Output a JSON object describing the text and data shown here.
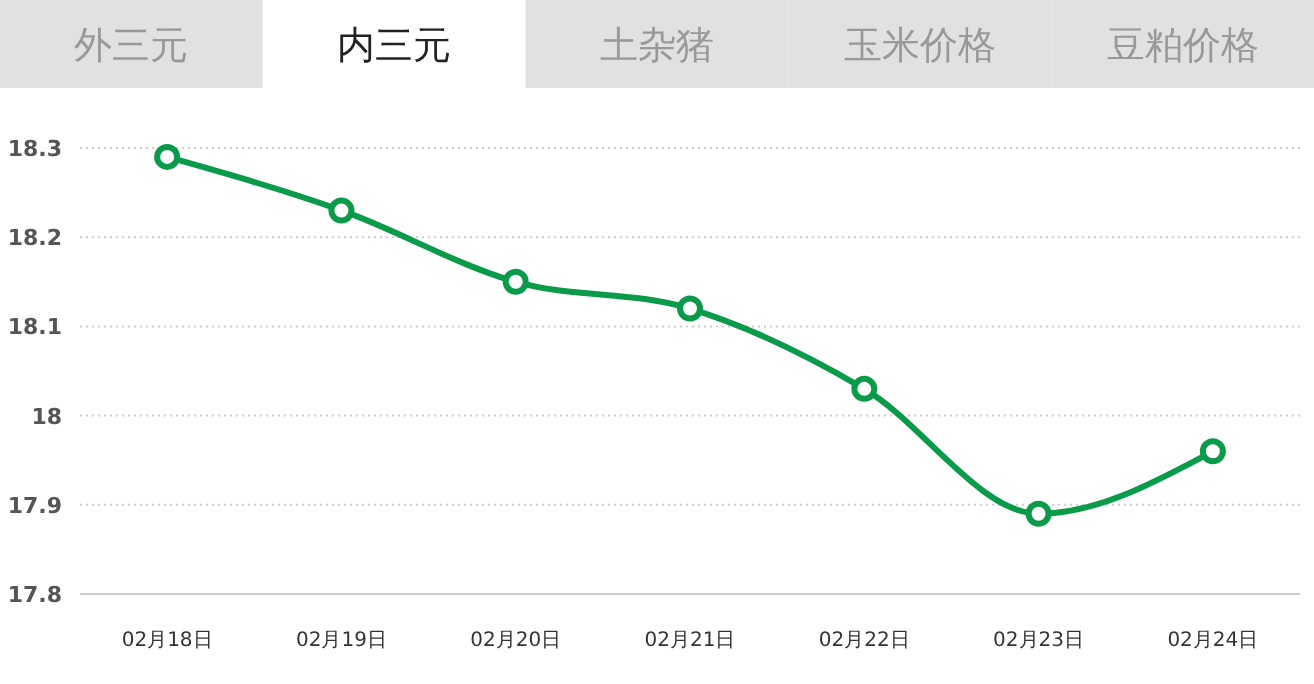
{
  "chart_data": {
    "type": "line",
    "categories": [
      "02月18日",
      "02月19日",
      "02月20日",
      "02月21日",
      "02月22日",
      "02月23日",
      "02月24日"
    ],
    "series": [
      {
        "color": "#0a9b4a",
        "values": [
          18.29,
          18.23,
          18.15,
          18.12,
          18.03,
          17.89,
          17.96
        ]
      }
    ],
    "ylim": [
      17.8,
      18.3
    ],
    "yticks": [
      17.8,
      17.9,
      18,
      18.1,
      18.2,
      18.3
    ],
    "grid": "y",
    "marker": "circle",
    "line_style": "solid",
    "annotations": [
      "外三元",
      "内三元",
      "土杂猪",
      "玉米价格",
      "豆粕价格"
    ]
  }
}
